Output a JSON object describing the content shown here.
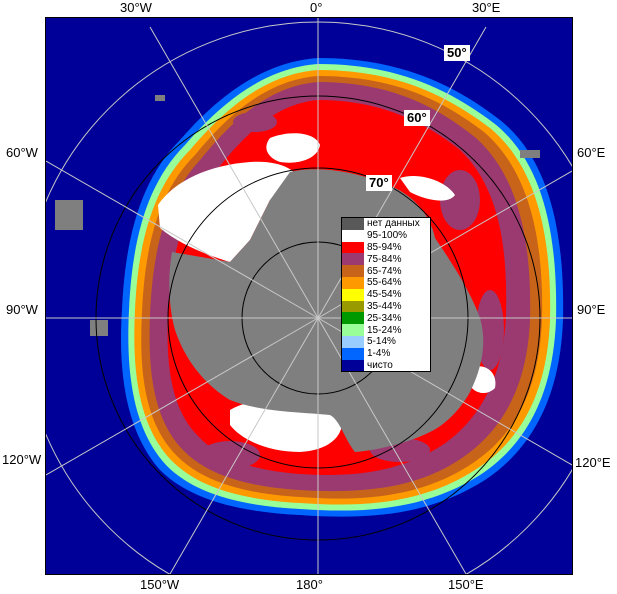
{
  "edge_labels": {
    "top": [
      "30°W",
      "0°",
      "30°E"
    ],
    "left": [
      "60°W",
      "90°W",
      "120°W"
    ],
    "right": [
      "60°E",
      "90°E",
      "120°E"
    ],
    "bottom": [
      "150°W",
      "180°",
      "150°E"
    ]
  },
  "lat_labels": [
    "50°",
    "60°",
    "70°"
  ],
  "legend": [
    {
      "label": "нет данных",
      "color": "#595959"
    },
    {
      "label": "95-100%",
      "color": "#ffffff"
    },
    {
      "label": "85-94%",
      "color": "#ff0000"
    },
    {
      "label": "75-84%",
      "color": "#9a3a70"
    },
    {
      "label": "65-74%",
      "color": "#c8641a"
    },
    {
      "label": "55-64%",
      "color": "#ff9900"
    },
    {
      "label": "45-54%",
      "color": "#ffff00"
    },
    {
      "label": "35-44%",
      "color": "#999900"
    },
    {
      "label": "25-34%",
      "color": "#009900"
    },
    {
      "label": "15-24%",
      "color": "#99ff99"
    },
    {
      "label": "5-14%",
      "color": "#99ccff"
    },
    {
      "label": "1-4%",
      "color": "#0066ff"
    },
    {
      "label": "чисто",
      "color": "#000099"
    }
  ],
  "colors": {
    "ocean": "#000099",
    "land": "#7f7f7f",
    "grid": "#c8c8c8",
    "ice_95_100": "#ffffff",
    "ice_85_94": "#ff0000",
    "ice_75_84": "#9a3a70",
    "ice_65_74": "#c8641a",
    "ice_55_64": "#ff9900",
    "ice_15_24": "#99ff99",
    "ice_1_4": "#0066ff"
  }
}
